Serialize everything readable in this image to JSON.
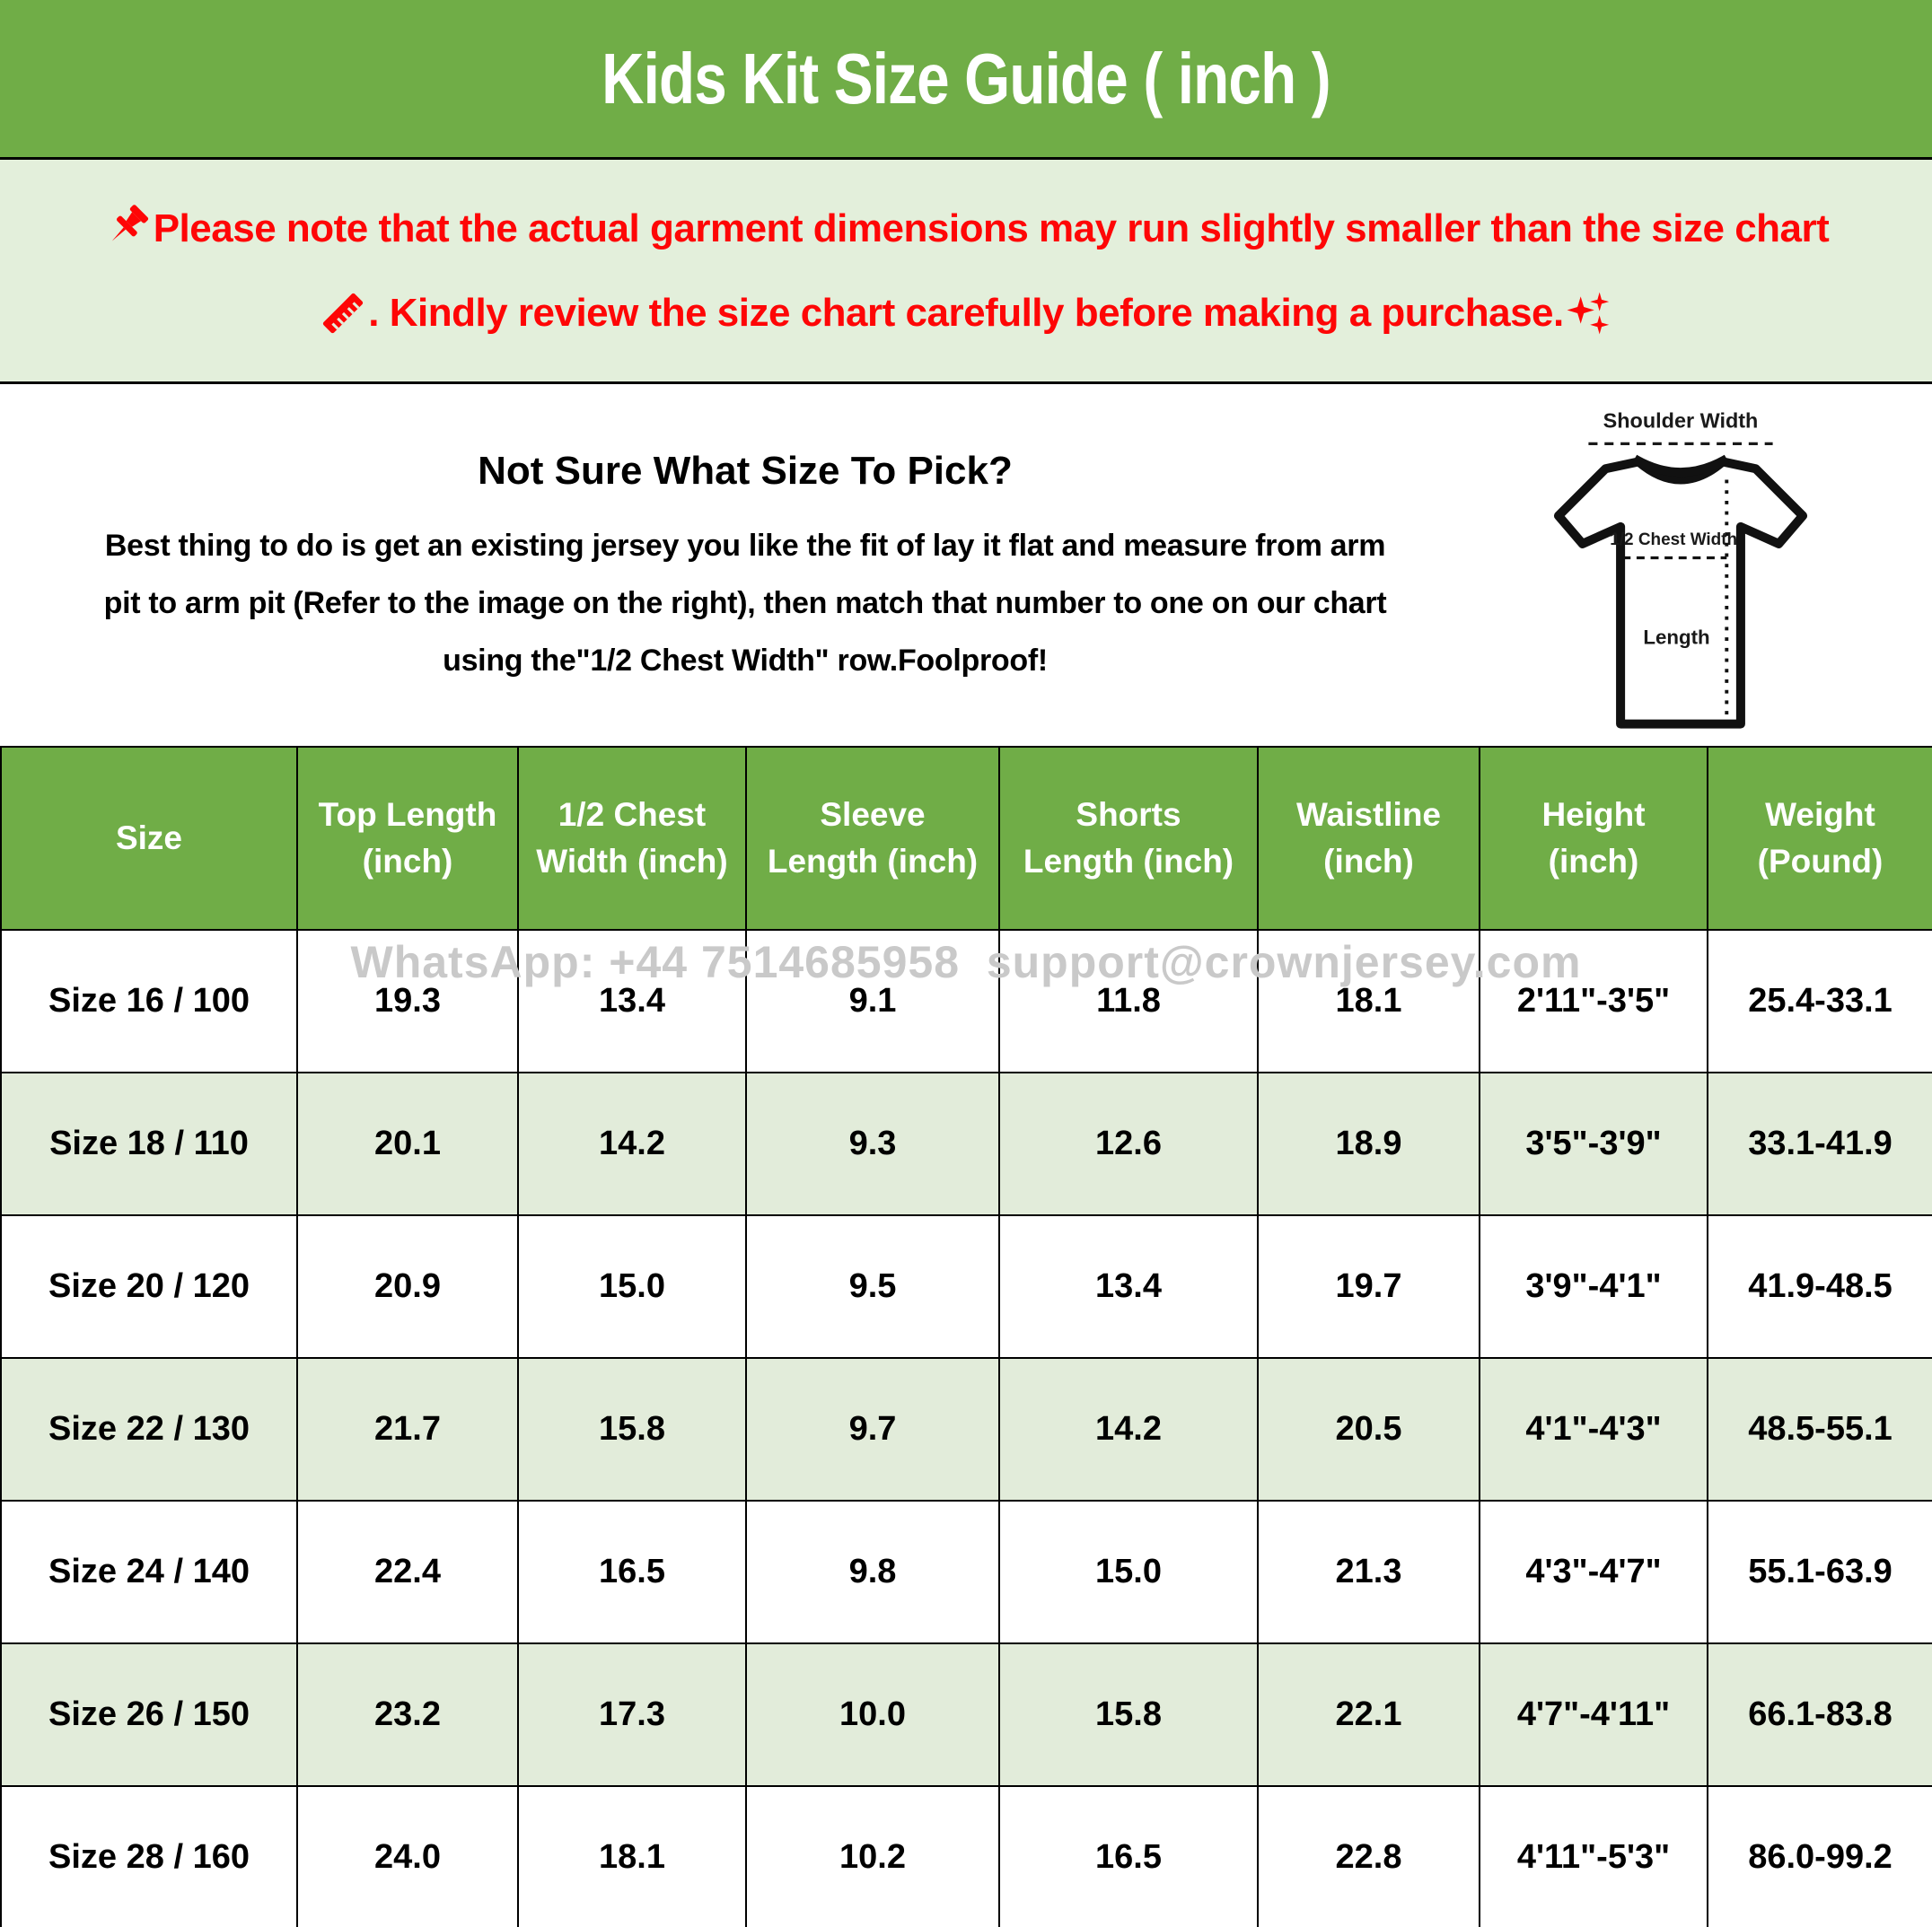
{
  "title": "Kids Kit Size Guide ( inch )",
  "colors": {
    "header_green": "#70ad47",
    "light_green": "#e3efdb",
    "row_stripe_green": "#e2ecda",
    "notice_red": "#fe0606",
    "watermark_gray": "#c9c9c9",
    "text_black": "#000000",
    "text_white": "#ffffff"
  },
  "notice": {
    "line1": "Please note that the actual garment dimensions may run slightly smaller than the size chart",
    "line2": ". Kindly review the size chart carefully before making a purchase.",
    "icons": [
      "pushpin-icon",
      "ruler-icon",
      "sparkles-icon"
    ]
  },
  "guide": {
    "heading": "Not Sure What Size To Pick?",
    "body_lines": [
      "Best thing to do is get an existing jersey you like the fit of lay it flat and measure from arm",
      "pit to arm pit (Refer to the image on the right), then match that number to one on our chart",
      "using the\"1/2 Chest Width\" row.Foolproof!"
    ]
  },
  "diagram": {
    "shoulder_label": "Shoulder Width",
    "chest_label": "1/2 Chest Width",
    "length_label": "Length"
  },
  "watermark": "WhatsApp: +44 7514685958  support@crownjersey.com",
  "table": {
    "headers": [
      {
        "line1": "Size",
        "line2": ""
      },
      {
        "line1": "Top Length",
        "line2": "(inch)"
      },
      {
        "line1": "1/2 Chest",
        "line2": "Width (inch)"
      },
      {
        "line1": "Sleeve",
        "line2": "Length (inch)"
      },
      {
        "line1": "Shorts",
        "line2": "Length (inch)"
      },
      {
        "line1": "Waistline",
        "line2": "(inch)"
      },
      {
        "line1": "Height",
        "line2": "(inch)"
      },
      {
        "line1": "Weight",
        "line2": "(Pound)"
      }
    ],
    "rows": [
      [
        "Size 16 / 100",
        "19.3",
        "13.4",
        "9.1",
        "11.8",
        "18.1",
        "2'11\"-3'5\"",
        "25.4-33.1"
      ],
      [
        "Size 18 / 110",
        "20.1",
        "14.2",
        "9.3",
        "12.6",
        "18.9",
        "3'5\"-3'9\"",
        "33.1-41.9"
      ],
      [
        "Size 20 / 120",
        "20.9",
        "15.0",
        "9.5",
        "13.4",
        "19.7",
        "3'9\"-4'1\"",
        "41.9-48.5"
      ],
      [
        "Size 22 / 130",
        "21.7",
        "15.8",
        "9.7",
        "14.2",
        "20.5",
        "4'1\"-4'3\"",
        "48.5-55.1"
      ],
      [
        "Size 24 / 140",
        "22.4",
        "16.5",
        "9.8",
        "15.0",
        "21.3",
        "4'3\"-4'7\"",
        "55.1-63.9"
      ],
      [
        "Size 26 / 150",
        "23.2",
        "17.3",
        "10.0",
        "15.8",
        "22.1",
        "4'7\"-4'11\"",
        "66.1-83.8"
      ],
      [
        "Size 28 / 160",
        "24.0",
        "18.1",
        "10.2",
        "16.5",
        "22.8",
        "4'11\"-5'3\"",
        "86.0-99.2"
      ]
    ]
  }
}
